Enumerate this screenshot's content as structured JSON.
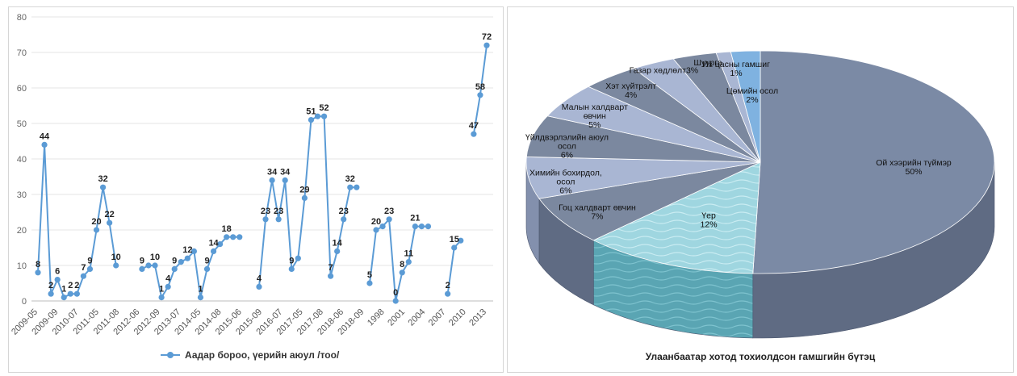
{
  "line_legend": "Аадар бороо, үерийн аюул /тоо/",
  "pie_caption": "Улаанбаатар хотод тохиолдсон гамшгийн бүтэц",
  "colors": {
    "line": "#5b9bd5",
    "pie_main": "#7b8aa5",
    "pie_light": "#a9b6d3",
    "pie_water": "#9fd6e0",
    "pie_blue": "#7fb2e0"
  },
  "chart_data": [
    {
      "type": "line",
      "ylim": [
        0,
        80
      ],
      "yticks": [
        "0",
        "10",
        "20",
        "30",
        "40",
        "50",
        "60",
        "70",
        "80"
      ],
      "xtick_labels": [
        "2009-05",
        "2009-09",
        "2010-07",
        "2011-05",
        "2011-08",
        "2012-06",
        "2012-09",
        "2013-07",
        "2014-05",
        "2014-08",
        "2015-06",
        "2015-09",
        "2016-07",
        "2017-05",
        "2017-08",
        "2018-06",
        "2018-09",
        "1998",
        "2001",
        "2004",
        "2007",
        "2010",
        "2013"
      ],
      "series": [
        {
          "name": "Аадар бороо, үерийн аюул /тоо/",
          "segments": [
            {
              "x": [
                0,
                1,
                2,
                3,
                4,
                5,
                6,
                7,
                8,
                9,
                10,
                11,
                12
              ],
              "values": [
                8,
                44,
                2,
                6,
                1,
                2,
                2,
                7,
                9,
                20,
                32,
                22,
                10
              ]
            },
            {
              "x": [
                16,
                17,
                18,
                19,
                20,
                21,
                22,
                23,
                24,
                25,
                26,
                27,
                28,
                29,
                30,
                31
              ],
              "values": [
                9,
                10,
                10,
                1,
                4,
                9,
                11,
                12,
                14,
                1,
                9,
                14,
                16,
                18,
                18,
                18
              ]
            },
            {
              "x": [
                34,
                35,
                36,
                37,
                38,
                39,
                40,
                41,
                42,
                43,
                44,
                45,
                46,
                47,
                48,
                49
              ],
              "values": [
                4,
                23,
                34,
                23,
                34,
                9,
                12,
                29,
                51,
                52,
                52,
                7,
                14,
                23,
                32,
                32
              ]
            },
            {
              "x": [
                51,
                52,
                53,
                54,
                55,
                56,
                57,
                58,
                59,
                60
              ],
              "values": [
                5,
                20,
                21,
                23,
                0,
                8,
                11,
                21,
                21,
                21
              ]
            },
            {
              "x": [
                63,
                64,
                65
              ],
              "values": [
                2,
                15,
                17
              ]
            },
            {
              "x": [
                67,
                68,
                69
              ],
              "values": [
                47,
                58,
                72
              ]
            }
          ]
        }
      ],
      "data_labels": [
        {
          "x": 0,
          "v": 8,
          "t": "8"
        },
        {
          "x": 1,
          "v": 44,
          "t": "44"
        },
        {
          "x": 2,
          "v": 2,
          "t": "2"
        },
        {
          "x": 3,
          "v": 6,
          "t": "6"
        },
        {
          "x": 4,
          "v": 1,
          "t": "1"
        },
        {
          "x": 5,
          "v": 2,
          "t": "2"
        },
        {
          "x": 6,
          "v": 2,
          "t": "2"
        },
        {
          "x": 7,
          "v": 7,
          "t": "7"
        },
        {
          "x": 8,
          "v": 9,
          "t": "9"
        },
        {
          "x": 9,
          "v": 20,
          "t": "20"
        },
        {
          "x": 10,
          "v": 32,
          "t": "32"
        },
        {
          "x": 11,
          "v": 22,
          "t": "22"
        },
        {
          "x": 12,
          "v": 10,
          "t": "10"
        },
        {
          "x": 16,
          "v": 9,
          "t": "9"
        },
        {
          "x": 18,
          "v": 10,
          "t": "10"
        },
        {
          "x": 19,
          "v": 1,
          "t": "1"
        },
        {
          "x": 20,
          "v": 4,
          "t": "4"
        },
        {
          "x": 21,
          "v": 9,
          "t": "9"
        },
        {
          "x": 23,
          "v": 12,
          "t": "12"
        },
        {
          "x": 25,
          "v": 1,
          "t": "1"
        },
        {
          "x": 26,
          "v": 9,
          "t": "9"
        },
        {
          "x": 27,
          "v": 14,
          "t": "14"
        },
        {
          "x": 29,
          "v": 18,
          "t": "18"
        },
        {
          "x": 34,
          "v": 4,
          "t": "4"
        },
        {
          "x": 35,
          "v": 23,
          "t": "23"
        },
        {
          "x": 36,
          "v": 34,
          "t": "34"
        },
        {
          "x": 37,
          "v": 23,
          "t": "23"
        },
        {
          "x": 38,
          "v": 34,
          "t": "34"
        },
        {
          "x": 39,
          "v": 9,
          "t": "9"
        },
        {
          "x": 41,
          "v": 29,
          "t": "29"
        },
        {
          "x": 42,
          "v": 51,
          "t": "51"
        },
        {
          "x": 44,
          "v": 52,
          "t": "52"
        },
        {
          "x": 45,
          "v": 7,
          "t": "7"
        },
        {
          "x": 46,
          "v": 14,
          "t": "14"
        },
        {
          "x": 47,
          "v": 23,
          "t": "23"
        },
        {
          "x": 48,
          "v": 32,
          "t": "32"
        },
        {
          "x": 51,
          "v": 5,
          "t": "5"
        },
        {
          "x": 52,
          "v": 20,
          "t": "20"
        },
        {
          "x": 54,
          "v": 23,
          "t": "23"
        },
        {
          "x": 55,
          "v": 0,
          "t": "0"
        },
        {
          "x": 56,
          "v": 8,
          "t": "8"
        },
        {
          "x": 57,
          "v": 11,
          "t": "11"
        },
        {
          "x": 58,
          "v": 21,
          "t": "21"
        },
        {
          "x": 63,
          "v": 2,
          "t": "2"
        },
        {
          "x": 64,
          "v": 15,
          "t": "15"
        },
        {
          "x": 67,
          "v": 47,
          "t": "47"
        },
        {
          "x": 68,
          "v": 58,
          "t": "58"
        },
        {
          "x": 69,
          "v": 72,
          "t": "72"
        }
      ]
    },
    {
      "type": "pie",
      "title": "Улаанбаатар хотод тохиолдсон гамшгийн бүтэц",
      "slices": [
        {
          "label": "Ой хээрийн түймэр",
          "value": 50,
          "pct": "50%"
        },
        {
          "label": "Үер",
          "value": 12,
          "pct": "12%"
        },
        {
          "label": "Гоц халдварт өвчин",
          "value": 7,
          "pct": "7%"
        },
        {
          "label": "Химийн бохирдол, осол",
          "value": 6,
          "pct": "6%"
        },
        {
          "label": "Үйлдвэрлэлийн аюул осол",
          "value": 6,
          "pct": "6%"
        },
        {
          "label": "Малын халдварт өвчин",
          "value": 5,
          "pct": "5%"
        },
        {
          "label": "Хэт хүйтрэлт",
          "value": 4,
          "pct": "4%"
        },
        {
          "label": "Газар хөдлөлт",
          "value": 3,
          "pct": "3%"
        },
        {
          "label": "Шуурга",
          "value": 3,
          "pct": ""
        },
        {
          "label": "Их цасны гамшиг",
          "value": 1,
          "pct": "1%"
        },
        {
          "label": "Цөмийн осол",
          "value": 2,
          "pct": "2%"
        }
      ]
    }
  ]
}
